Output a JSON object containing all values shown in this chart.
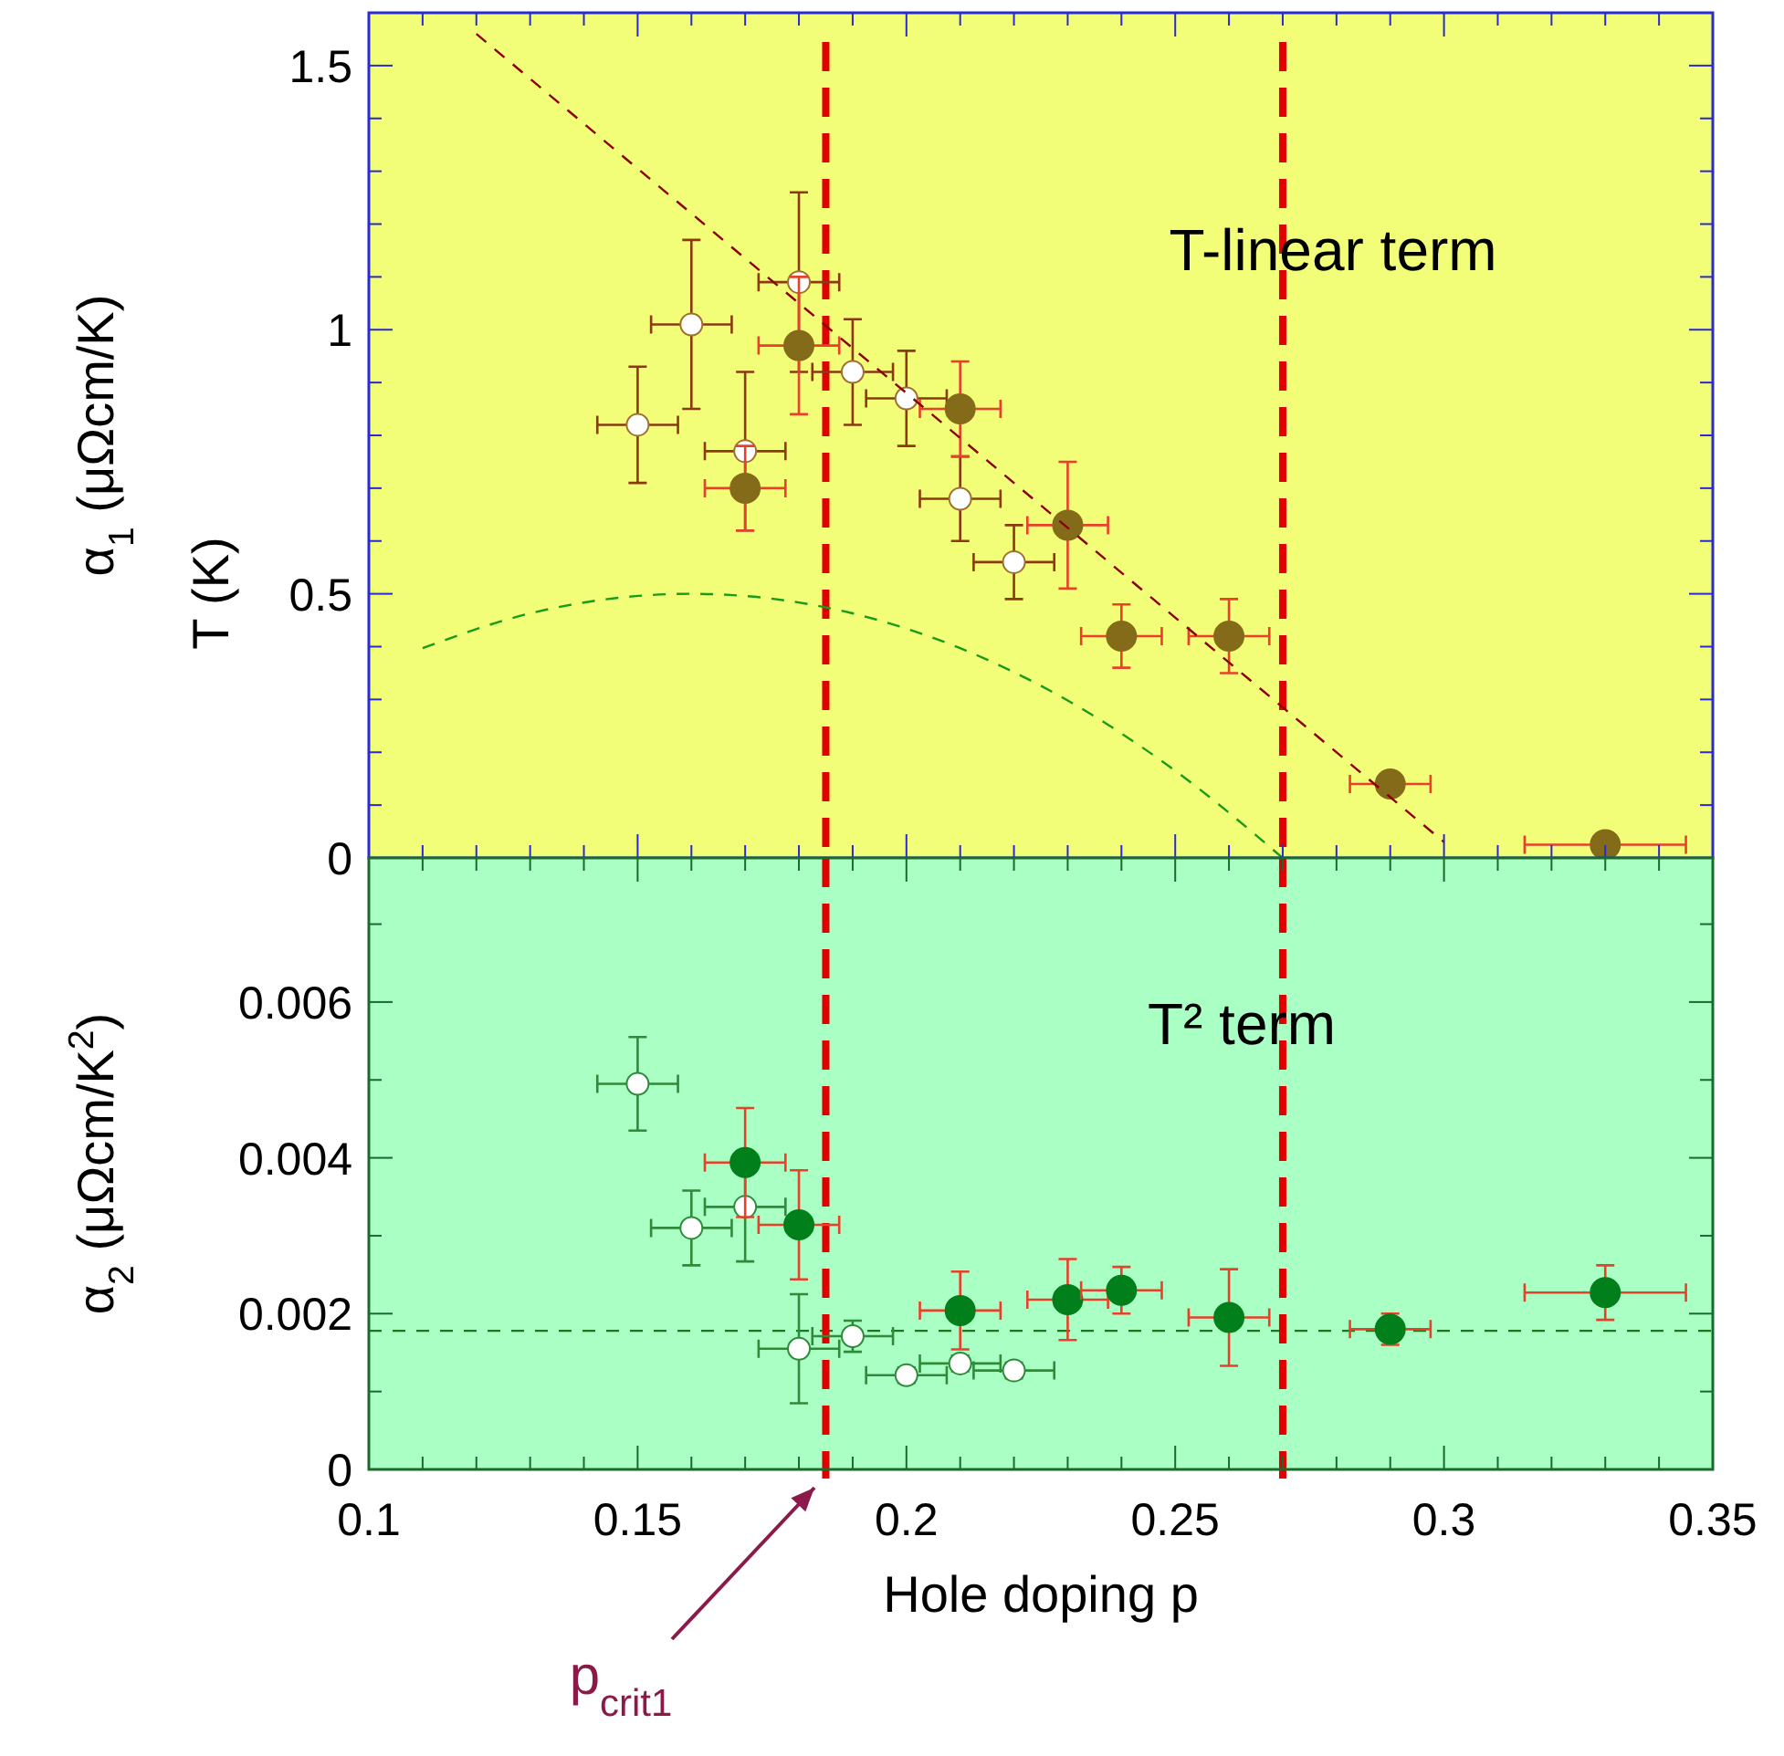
{
  "chart_data": [
    {
      "type": "scatter",
      "marker": "circle",
      "ylabel": "α$_{1}$ (μΩcm/K)",
      "tick_labels": "y",
      "xlim": [
        0.1,
        0.35
      ],
      "ylim": [
        0,
        1.6
      ],
      "xticks": [
        0.1,
        {
          "value": 0.11,
          "label": null
        },
        {
          "value": 0.12,
          "label": null
        },
        {
          "value": 0.13,
          "label": null
        },
        {
          "value": 0.14,
          "label": null
        },
        0.15,
        {
          "value": 0.16,
          "label": null
        },
        {
          "value": 0.17,
          "label": null
        },
        {
          "value": 0.18,
          "label": null
        },
        {
          "value": 0.19,
          "label": null
        },
        0.2,
        {
          "value": 0.21,
          "label": null
        },
        {
          "value": 0.22,
          "label": null
        },
        {
          "value": 0.23,
          "label": null
        },
        {
          "value": 0.24,
          "label": null
        },
        0.25,
        {
          "value": 0.26,
          "label": null
        },
        {
          "value": 0.27,
          "label": null
        },
        {
          "value": 0.28,
          "label": null
        },
        {
          "value": 0.29,
          "label": null
        },
        0.3,
        {
          "value": 0.31,
          "label": null
        },
        {
          "value": 0.32,
          "label": null
        },
        {
          "value": 0.33,
          "label": null
        },
        {
          "value": 0.34,
          "label": null
        },
        0.35
      ],
      "yticks": [
        0,
        {
          "value": 0.1,
          "label": null
        },
        {
          "value": 0.2,
          "label": null
        },
        {
          "value": 0.3,
          "label": null
        },
        {
          "value": 0.4,
          "label": null
        },
        0.5,
        {
          "value": 0.6,
          "label": null
        },
        {
          "value": 0.7,
          "label": null
        },
        {
          "value": 0.8,
          "label": null
        },
        {
          "value": 0.9,
          "label": null
        },
        1,
        {
          "value": 1.1,
          "label": null
        },
        {
          "value": 1.2,
          "label": null
        },
        {
          "value": 1.3,
          "label": null
        },
        {
          "value": 1.4,
          "label": null
        },
        1.5
      ],
      "series": [
        {
          "color": "#ffffff",
          "x": [
            0.15,
            0.16,
            0.17,
            0.18,
            0.19,
            0.2,
            0.21,
            0.22
          ],
          "values": [
            0.82,
            1.01,
            0.77,
            1.09,
            0.92,
            0.87,
            0.68,
            0.56
          ],
          "errors": [
            0.11,
            0.16,
            0.15,
            0.17,
            0.1,
            0.09,
            0.08,
            0.07
          ],
          "xerrors": [
            0.0075,
            0.0075,
            0.0075,
            0.0075,
            0.0075,
            0.0075,
            0.0075,
            0.0075
          ]
        },
        {
          "color": "#836b1a",
          "x": [
            0.17,
            0.18,
            0.21,
            0.23,
            0.24,
            0.26,
            0.29,
            0.33
          ],
          "values": [
            0.7,
            0.97,
            0.85,
            0.63,
            0.42,
            0.42,
            0.14,
            0.025
          ],
          "errors": [
            0.08,
            0.13,
            0.09,
            0.12,
            0.06,
            0.07,
            null,
            null
          ],
          "xerrors": [
            0.0075,
            0.0075,
            0.0075,
            0.0075,
            0.0075,
            0.0075,
            0.0075,
            0.015
          ]
        },
        {
          "type": "line",
          "line_style": "dashed",
          "marker": "none",
          "color": "#8b0000",
          "x": [
            0.12,
            0.3
          ],
          "values": [
            1.56,
            0.03
          ]
        },
        {
          "type": "line",
          "line_style": "dashed",
          "marker": "none",
          "color": "#1a9a1a",
          "x": [
            0.11,
            0.13,
            0.16,
            0.19,
            0.21,
            0.23,
            0.25,
            0.27
          ],
          "values": [
            0.397,
            0.463,
            0.5,
            0.463,
            0.397,
            0.298,
            0.165,
            0
          ]
        }
      ],
      "ref_lines": [
        {
          "axis": "x",
          "value": 0.185,
          "color": "#e00000",
          "line_style": "dashed"
        },
        {
          "axis": "x",
          "value": 0.27,
          "color": "#e00000",
          "line_style": "dashed"
        }
      ],
      "annotations": [
        "T-linear term",
        "T (K)"
      ]
    },
    {
      "type": "scatter",
      "marker": "circle",
      "xlabel": "Hole doping p",
      "ylabel": "α$_{2}$ (μΩcm/K$^{2}$)",
      "xlim": [
        0.1,
        0.35
      ],
      "ylim": [
        0,
        0.00785
      ],
      "xticks": [
        0.1,
        {
          "value": 0.11,
          "label": null
        },
        {
          "value": 0.12,
          "label": null
        },
        {
          "value": 0.13,
          "label": null
        },
        {
          "value": 0.14,
          "label": null
        },
        0.15,
        {
          "value": 0.16,
          "label": null
        },
        {
          "value": 0.17,
          "label": null
        },
        {
          "value": 0.18,
          "label": null
        },
        {
          "value": 0.19,
          "label": null
        },
        0.2,
        {
          "value": 0.21,
          "label": null
        },
        {
          "value": 0.22,
          "label": null
        },
        {
          "value": 0.23,
          "label": null
        },
        {
          "value": 0.24,
          "label": null
        },
        0.25,
        {
          "value": 0.26,
          "label": null
        },
        {
          "value": 0.27,
          "label": null
        },
        {
          "value": 0.28,
          "label": null
        },
        {
          "value": 0.29,
          "label": null
        },
        0.3,
        {
          "value": 0.31,
          "label": null
        },
        {
          "value": 0.32,
          "label": null
        },
        {
          "value": 0.33,
          "label": null
        },
        {
          "value": 0.34,
          "label": null
        },
        0.35
      ],
      "yticks": [
        0,
        {
          "value": 0.001,
          "label": null
        },
        0.002,
        {
          "value": 0.003,
          "label": null
        },
        0.004,
        {
          "value": 0.005,
          "label": null
        },
        0.006,
        {
          "value": 0.007,
          "label": null
        }
      ],
      "series": [
        {
          "color": "#ffffff",
          "x": [
            0.15,
            0.16,
            0.17,
            0.18,
            0.19,
            0.2,
            0.21,
            0.22
          ],
          "values": [
            0.00495,
            0.0031,
            0.00337,
            0.00155,
            0.00171,
            0.00121,
            0.00136,
            0.00127
          ],
          "errors": [
            0.0006,
            0.00048,
            0.0007,
            0.0007,
            0.0002,
            0.0001,
            0.0001,
            0.0001
          ],
          "xerrors": [
            0.0075,
            0.0075,
            0.0075,
            0.0075,
            0.0075,
            0.0075,
            0.0075,
            0.0075
          ]
        },
        {
          "color": "#007f1a",
          "x": [
            0.17,
            0.18,
            0.21,
            0.23,
            0.24,
            0.26,
            0.29,
            0.33
          ],
          "values": [
            0.00394,
            0.00314,
            0.00204,
            0.00218,
            0.0023,
            0.00195,
            0.0018,
            0.00227
          ],
          "errors": [
            0.0007,
            0.0007,
            0.0005,
            0.00052,
            0.0003,
            0.00062,
            0.0002,
            0.00035
          ],
          "xerrors": [
            0.0075,
            0.0075,
            0.0075,
            0.0075,
            0.0075,
            0.0075,
            0.0075,
            0.015
          ]
        }
      ],
      "ref_lines": [
        {
          "axis": "y",
          "value": 0.00178,
          "color": "#1a7a1a",
          "line_style": "dashed"
        },
        {
          "axis": "x",
          "value": 0.185,
          "color": "#e00000",
          "line_style": "dashed"
        },
        {
          "axis": "x",
          "value": 0.27,
          "color": "#e00000",
          "line_style": "dashed"
        }
      ],
      "annotations": [
        "T² term",
        "p$_{crit1}$"
      ]
    }
  ]
}
